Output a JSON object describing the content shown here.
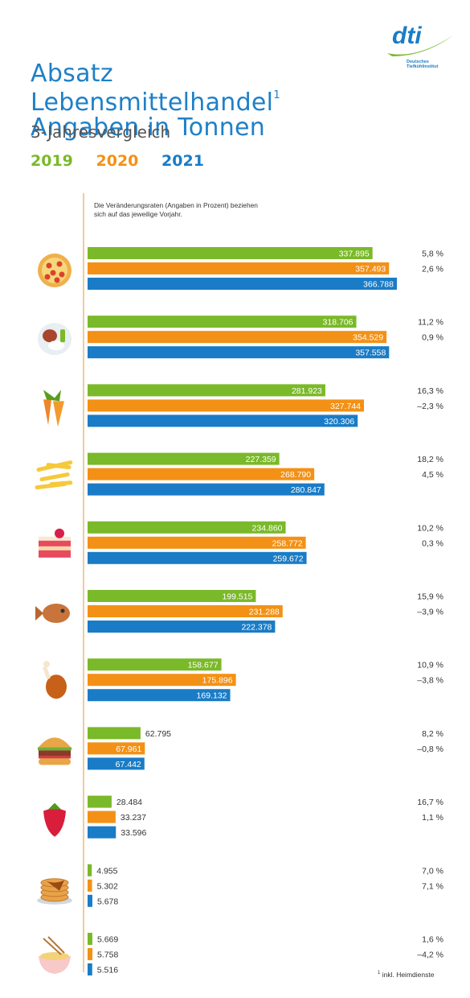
{
  "header": {
    "title_line1": "Absatz Lebensmittelhandel",
    "title_sup": "1",
    "title_line2": "Angaben in Tonnen",
    "subtitle": "3-Jahresvergleich"
  },
  "logo": {
    "text": "dti",
    "subtext_line1": "Deutsches",
    "subtext_line2": "Tiefkühlinstitut"
  },
  "note": "Die Veränderungsraten (Angaben in Prozent) beziehen sich auf das jeweilige Vorjahr.",
  "footnote": {
    "sup": "1",
    "text": "inkl. Heimdienste"
  },
  "colors": {
    "2019": "#7ab929",
    "2020": "#f39116",
    "2021": "#1a7cc6",
    "axis": "#f0b77a",
    "title": "#1e80c8"
  },
  "chart_data": {
    "type": "bar",
    "orientation": "horizontal",
    "unit": "Tonnen",
    "categories": [
      "pizza-icon",
      "meal-icon",
      "vegetables-icon",
      "fries-icon",
      "cake-icon",
      "fish-icon",
      "poultry-icon",
      "burger-icon",
      "fruit-icon",
      "pancakes-icon",
      "noodles-icon"
    ],
    "xlim": [
      0,
      366788
    ],
    "series": [
      {
        "name": "2019",
        "values": [
          337895,
          318706,
          281923,
          227359,
          234860,
          199515,
          158677,
          62795,
          28484,
          4955,
          5669
        ],
        "labels": [
          "337.895",
          "318.706",
          "281.923",
          "227.359",
          "234.860",
          "199.515",
          "158.677",
          "62.795",
          "28.484",
          "4.955",
          "5.669"
        ],
        "change_labels": [
          "5,8 %",
          "11,2 %",
          "16,3 %",
          "18,2 %",
          "10,2 %",
          "15,9 %",
          "10,9 %",
          "8,2 %",
          "16,7 %",
          "7,0 %",
          "1,6 %"
        ]
      },
      {
        "name": "2020",
        "values": [
          357493,
          354529,
          327744,
          268790,
          258772,
          231288,
          175896,
          67961,
          33237,
          5302,
          5758
        ],
        "labels": [
          "357.493",
          "354.529",
          "327.744",
          "268.790",
          "258.772",
          "231.288",
          "175.896",
          "67.961",
          "33.237",
          "5.302",
          "5.758"
        ],
        "change_labels": [
          "2,6 %",
          "0,9 %",
          "–2,3 %",
          "4,5 %",
          "0,3 %",
          "–3,9 %",
          "–3,8 %",
          "–0,8 %",
          "1,1 %",
          "7,1 %",
          "–4,2 %"
        ]
      },
      {
        "name": "2021",
        "values": [
          366788,
          357558,
          320306,
          280847,
          259672,
          222378,
          169132,
          67442,
          33596,
          5678,
          5516
        ],
        "labels": [
          "366.788",
          "357.558",
          "320.306",
          "280.847",
          "259.672",
          "222.378",
          "169.132",
          "67.442",
          "33.596",
          "5.678",
          "5.516"
        ],
        "change_labels": []
      }
    ]
  }
}
